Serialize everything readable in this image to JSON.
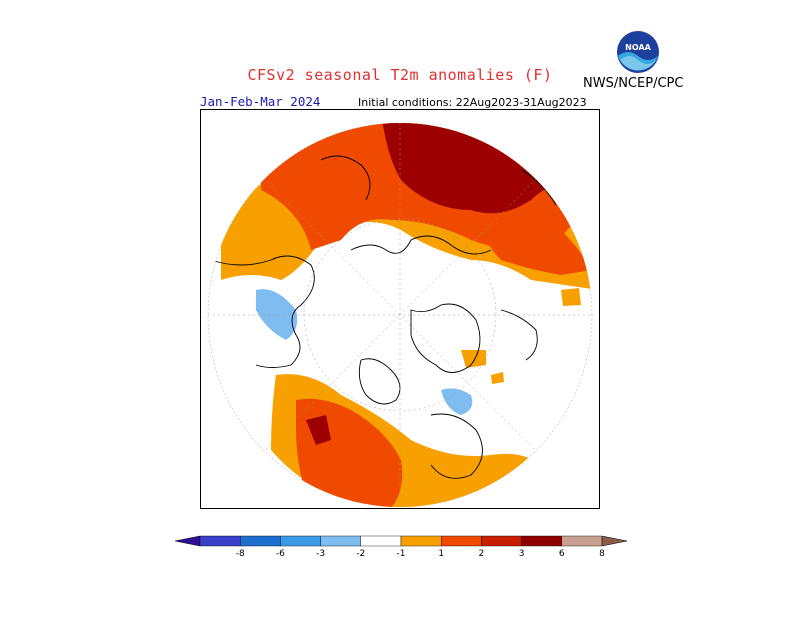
{
  "header": {
    "title": "CFSv2 seasonal T2m anomalies (F)",
    "agency": "NWS/NCEP/CPC",
    "period": "Jan-Feb-Mar 2024",
    "initial_conditions": "Initial conditions: 22Aug2023-31Aug2023"
  },
  "logo": {
    "icon": "noaa-logo-icon",
    "text": "NOAA"
  },
  "colorbar": {
    "labels": [
      "-8",
      "-6",
      "-3",
      "-2",
      "-1",
      "1",
      "2",
      "3",
      "6",
      "8"
    ],
    "colors": [
      "#2e0f96",
      "#3a3fc8",
      "#1f6fd0",
      "#3d9ae6",
      "#7fbcf0",
      "#ffffff",
      "#f7a000",
      "#f04a00",
      "#c81e00",
      "#8f0000",
      "#c8a090",
      "#8a5a4a"
    ]
  },
  "colors": {
    "anom_1_2": "#f7a000",
    "anom_2_3": "#f04a00",
    "anom_3_6": "#9c0000",
    "anom_neg_1_2": "#7fbcf0",
    "anom_neg_2_3": "#3d9ae6",
    "title": "#e03030",
    "period": "#1a1ab0"
  }
}
